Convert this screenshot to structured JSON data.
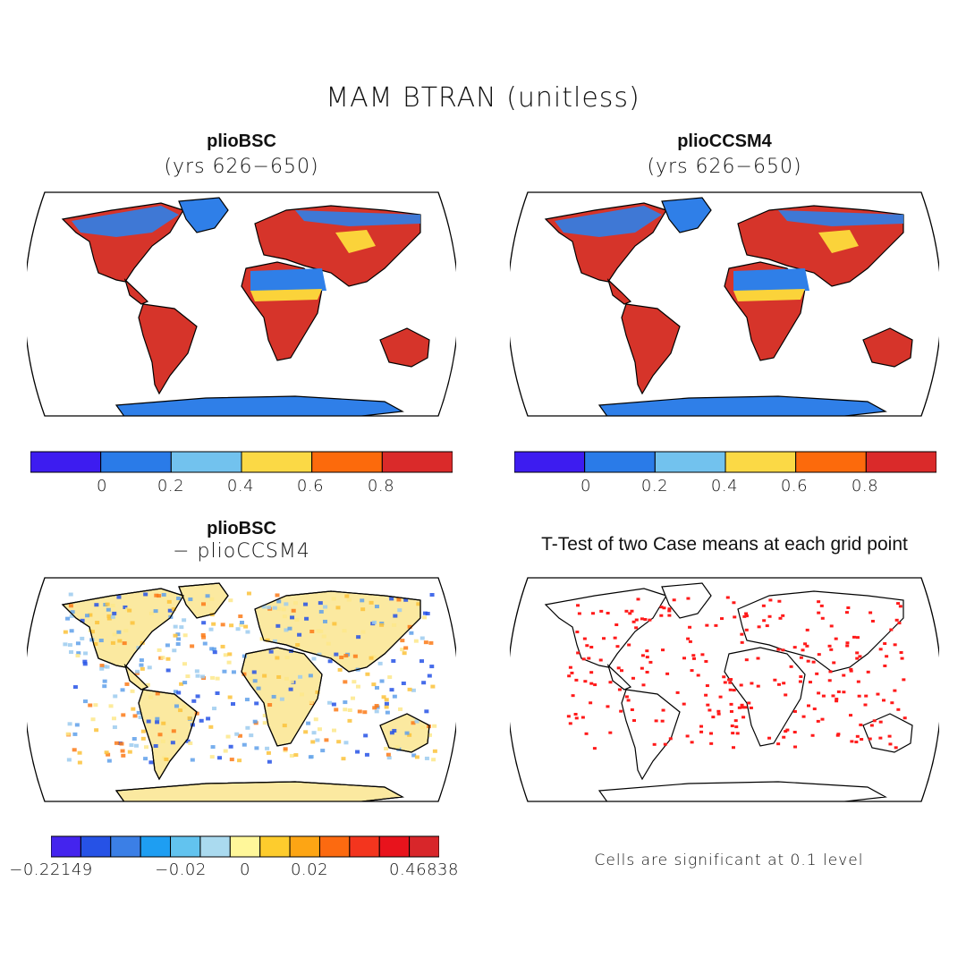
{
  "title": "MAM BTRAN (unitless)",
  "panels": [
    {
      "title": "plioBSC",
      "subtitle": "(yrs 626−650)"
    },
    {
      "title": "plioCCSM4",
      "subtitle": "(yrs 626−650)"
    },
    {
      "title": "plioBSC",
      "subtitle": "− plioCCSM4"
    },
    {
      "title": "T-Test of two Case means at each grid point",
      "subtitle": ""
    }
  ],
  "colorbar_abs": {
    "colors": [
      "#3d1cf0",
      "#2a7be8",
      "#72c2ee",
      "#fbd945",
      "#fc6a0c",
      "#da2a2a"
    ],
    "tick_labels": [
      "0",
      "0.2",
      "0.4",
      "0.6",
      "0.8"
    ]
  },
  "colorbar_diff": {
    "colors": [
      "#4424ee",
      "#2652e6",
      "#3b7fe6",
      "#1e9ef2",
      "#62c3ef",
      "#aadaef",
      "#fff79a",
      "#fdcc2d",
      "#fda514",
      "#fc6a10",
      "#f3351e",
      "#e8131c",
      "#d8262a"
    ],
    "tick_labels": [
      "−0.22149",
      "−0.02",
      "0",
      "0.02",
      "0.46838"
    ]
  },
  "significance_note": "Cells are significant at 0.1 level",
  "colors": {
    "abs_land": "#d6342a",
    "abs_polar": "#2f7fe8",
    "abs_mid": "#fbd33a",
    "diff_land": "#fbe9a0",
    "diff_blue": "#5fa0ea",
    "sig_cell": "#ff1a1a"
  }
}
